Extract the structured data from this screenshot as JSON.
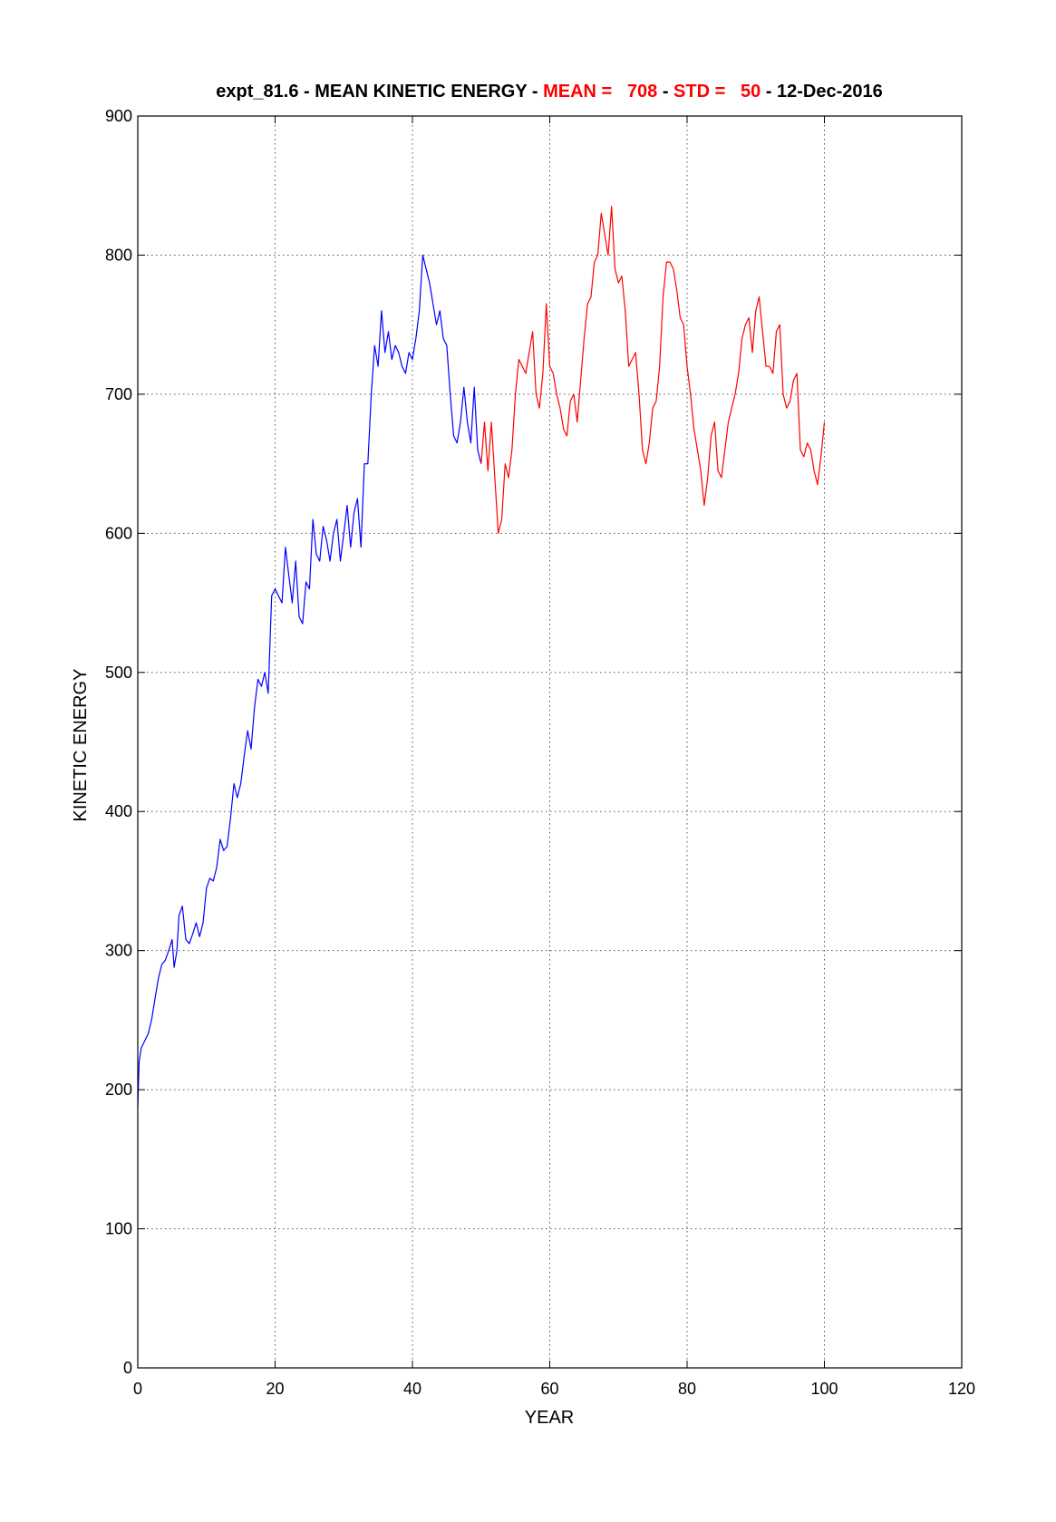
{
  "chart_data": {
    "type": "line",
    "title_parts": [
      {
        "text": "expt_81.6 - MEAN KINETIC ENERGY - ",
        "color": "#000000"
      },
      {
        "text": "MEAN =   708",
        "color": "#ff0000"
      },
      {
        "text": " - ",
        "color": "#000000"
      },
      {
        "text": "STD =   50",
        "color": "#ff0000"
      },
      {
        "text": " - 12-Dec-2016",
        "color": "#000000"
      }
    ],
    "xlabel": "YEAR",
    "ylabel": "KINETIC ENERGY",
    "xlim": [
      0,
      120
    ],
    "ylim": [
      0,
      900
    ],
    "xticks": [
      "0",
      "20",
      "40",
      "60",
      "80",
      "100",
      "120"
    ],
    "yticks": [
      "0",
      "100",
      "200",
      "300",
      "400",
      "500",
      "600",
      "700",
      "800",
      "900"
    ],
    "grid": true,
    "grid_style": "dotted",
    "series": [
      {
        "color": "#0000ff",
        "x": [
          0,
          0.2,
          0.5,
          1,
          1.5,
          2,
          2.5,
          3,
          3.5,
          4,
          4.5,
          5,
          5.3,
          5.7,
          6,
          6.5,
          7,
          7.5,
          8,
          8.5,
          9,
          9.5,
          10,
          10.5,
          11,
          11.5,
          12,
          12.5,
          13,
          13.5,
          14,
          14.5,
          15,
          15.5,
          16,
          16.5,
          17,
          17.5,
          18,
          18.5,
          19,
          19.5,
          20,
          20.5,
          21,
          21.5,
          22,
          22.5,
          23,
          23.5,
          24,
          24.5,
          25,
          25.5,
          26,
          26.5,
          27,
          27.5,
          28,
          28.5,
          29,
          29.5,
          30,
          30.5,
          31,
          31.5,
          32,
          32.5,
          33,
          33.5,
          34,
          34.5,
          35,
          35.5,
          36,
          36.5,
          37,
          37.5,
          38,
          38.5,
          39,
          39.5,
          40,
          40.5,
          41,
          41.5,
          42,
          42.5,
          43,
          43.5,
          44,
          44.5,
          45,
          45.5,
          46,
          46.5,
          47,
          47.5,
          48,
          48.5,
          49,
          49.5,
          50
        ],
        "y": [
          188,
          220,
          230,
          235,
          240,
          250,
          265,
          280,
          290,
          293,
          300,
          308,
          288,
          300,
          325,
          332,
          308,
          305,
          312,
          320,
          310,
          320,
          345,
          352,
          350,
          360,
          380,
          372,
          375,
          395,
          420,
          410,
          420,
          440,
          458,
          445,
          475,
          495,
          490,
          500,
          485,
          555,
          560,
          555,
          550,
          590,
          570,
          550,
          580,
          540,
          535,
          565,
          560,
          610,
          585,
          580,
          605,
          595,
          580,
          600,
          610,
          580,
          600,
          620,
          590,
          615,
          625,
          590,
          650,
          650,
          700,
          735,
          720,
          760,
          730,
          745,
          725,
          735,
          730,
          720,
          715,
          730,
          725,
          740,
          760,
          800,
          790,
          780,
          765,
          750,
          760,
          740,
          735,
          700,
          670,
          665,
          680,
          705,
          680,
          665,
          705,
          660,
          650
        ],
        "name": ""
      },
      {
        "color": "#ff0000",
        "x": [
          50,
          50.5,
          51,
          51.5,
          52,
          52.5,
          53,
          53.5,
          54,
          54.5,
          55,
          55.5,
          56,
          56.5,
          57,
          57.5,
          58,
          58.5,
          59,
          59.5,
          60,
          60.5,
          61,
          61.5,
          62,
          62.5,
          63,
          63.5,
          64,
          64.5,
          65,
          65.5,
          66,
          66.5,
          67,
          67.5,
          68,
          68.5,
          69,
          69.5,
          70,
          70.5,
          71,
          71.5,
          72,
          72.5,
          73,
          73.5,
          74,
          74.5,
          75,
          75.5,
          76,
          76.5,
          77,
          77.5,
          78,
          78.5,
          79,
          79.5,
          80,
          80.5,
          81,
          81.5,
          82,
          82.5,
          83,
          83.5,
          84,
          84.5,
          85,
          85.5,
          86,
          86.5,
          87,
          87.5,
          88,
          88.5,
          89,
          89.5,
          90,
          90.5,
          91,
          91.5,
          92,
          92.5,
          93,
          93.5,
          94,
          94.5,
          95,
          95.5,
          96,
          96.5,
          97,
          97.5,
          98,
          98.5,
          99,
          99.5,
          100
        ],
        "y": [
          650,
          680,
          645,
          680,
          640,
          600,
          610,
          650,
          640,
          660,
          700,
          725,
          720,
          715,
          730,
          745,
          700,
          690,
          715,
          765,
          720,
          715,
          700,
          690,
          675,
          670,
          695,
          700,
          680,
          710,
          740,
          765,
          770,
          795,
          800,
          830,
          815,
          800,
          835,
          790,
          780,
          785,
          760,
          720,
          725,
          730,
          700,
          660,
          650,
          665,
          690,
          695,
          720,
          770,
          795,
          795,
          790,
          775,
          755,
          750,
          720,
          700,
          675,
          660,
          645,
          620,
          640,
          670,
          680,
          645,
          640,
          660,
          680,
          690,
          700,
          715,
          740,
          750,
          755,
          730,
          760,
          770,
          745,
          720,
          720,
          715,
          745,
          750,
          700,
          690,
          695,
          710,
          715,
          660,
          655,
          665,
          660,
          645,
          635,
          655,
          680
        ],
        "name": ""
      }
    ]
  }
}
